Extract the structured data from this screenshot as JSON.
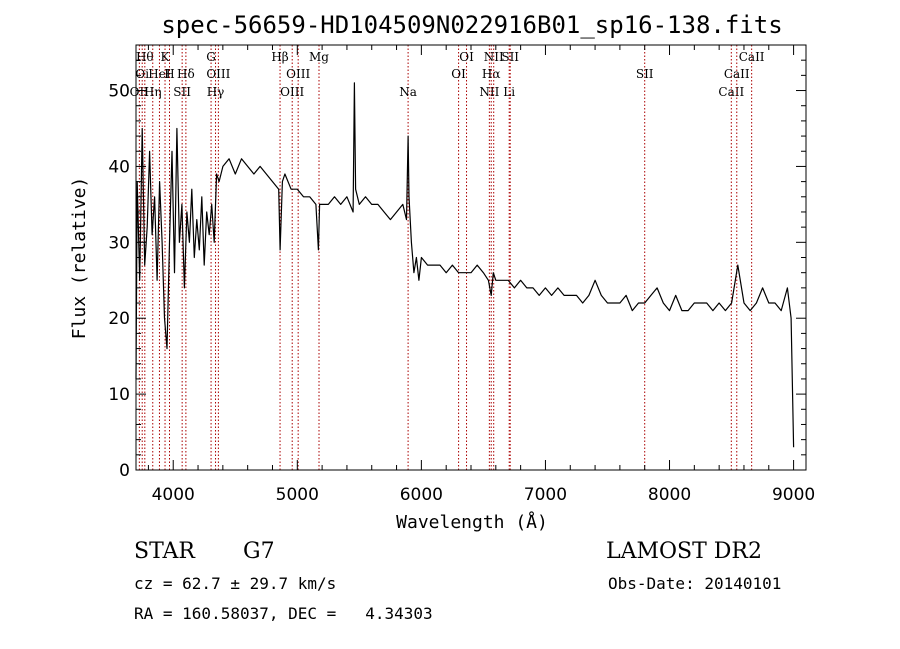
{
  "chart_data": {
    "type": "line",
    "title": "spec-56659-HD104509N022916B01_sp16-138.fits",
    "xlabel": "Wavelength (Å)",
    "ylabel": "Flux (relative)",
    "xlim": [
      3700,
      9100
    ],
    "ylim": [
      0,
      56
    ],
    "xticks": [
      4000,
      5000,
      6000,
      7000,
      8000,
      9000
    ],
    "yticks": [
      0,
      10,
      20,
      30,
      40,
      50
    ],
    "grid": false,
    "line_color": "#000000",
    "marker_color": "#aa0000",
    "series": [
      {
        "x": [
          3700,
          3710,
          3730,
          3750,
          3770,
          3790,
          3810,
          3830,
          3850,
          3870,
          3890,
          3910,
          3930,
          3950,
          3970,
          3990,
          4010,
          4030,
          4050,
          4070,
          4090,
          4110,
          4130,
          4150,
          4170,
          4190,
          4210,
          4230,
          4250,
          4270,
          4290,
          4310,
          4330,
          4350,
          4370,
          4400,
          4450,
          4500,
          4550,
          4600,
          4650,
          4700,
          4750,
          4800,
          4850,
          4861,
          4880,
          4900,
          4950,
          5000,
          5050,
          5100,
          5150,
          5170,
          5180,
          5200,
          5250,
          5300,
          5350,
          5400,
          5450,
          5460,
          5470,
          5500,
          5550,
          5600,
          5650,
          5700,
          5750,
          5800,
          5850,
          5880,
          5893,
          5900,
          5920,
          5940,
          5960,
          5980,
          6000,
          6050,
          6100,
          6150,
          6200,
          6250,
          6300,
          6350,
          6400,
          6450,
          6500,
          6540,
          6563,
          6580,
          6600,
          6650,
          6700,
          6750,
          6800,
          6850,
          6900,
          6950,
          7000,
          7050,
          7100,
          7150,
          7200,
          7250,
          7300,
          7350,
          7400,
          7450,
          7500,
          7550,
          7600,
          7650,
          7700,
          7750,
          7800,
          7850,
          7900,
          7950,
          8000,
          8050,
          8100,
          8150,
          8200,
          8250,
          8300,
          8350,
          8400,
          8450,
          8500,
          8550,
          8600,
          8650,
          8700,
          8750,
          8800,
          8850,
          8900,
          8950,
          8980,
          9000
        ],
        "values": [
          12,
          38,
          25,
          45,
          27,
          32,
          42,
          31,
          36,
          25,
          38,
          30,
          20,
          16,
          30,
          42,
          26,
          45,
          30,
          35,
          24,
          34,
          30,
          37,
          28,
          33,
          29,
          36,
          27,
          34,
          31,
          35,
          30,
          39,
          38,
          40,
          41,
          39,
          41,
          40,
          39,
          40,
          39,
          38,
          37,
          29,
          38,
          39,
          37,
          37,
          36,
          36,
          35,
          29,
          35,
          35,
          35,
          36,
          35,
          36,
          34,
          51,
          37,
          35,
          36,
          35,
          35,
          34,
          33,
          34,
          35,
          33,
          44,
          36,
          30,
          26,
          28,
          25,
          28,
          27,
          27,
          27,
          26,
          27,
          26,
          26,
          26,
          27,
          26,
          25,
          23,
          26,
          25,
          25,
          25,
          24,
          25,
          24,
          24,
          23,
          24,
          23,
          24,
          23,
          23,
          23,
          22,
          23,
          25,
          23,
          22,
          22,
          22,
          23,
          21,
          22,
          22,
          23,
          24,
          22,
          21,
          23,
          21,
          21,
          22,
          22,
          22,
          21,
          22,
          21,
          22,
          27,
          22,
          21,
          22,
          24,
          22,
          22,
          21,
          24,
          20,
          3
        ]
      }
    ],
    "line_markers": [
      {
        "w": 3727,
        "label": "OII",
        "row": 3
      },
      {
        "w": 3750,
        "label": "Oi",
        "row": 2
      },
      {
        "w": 3771,
        "label": "Hθ",
        "row": 1
      },
      {
        "w": 3835,
        "label": "Hη",
        "row": 3
      },
      {
        "w": 3889,
        "label": "HeI",
        "row": 2
      },
      {
        "w": 3934,
        "label": "K",
        "row": 1
      },
      {
        "w": 3970,
        "label": "H",
        "row": 2
      },
      {
        "w": 4072,
        "label": "SII",
        "row": 3
      },
      {
        "w": 4102,
        "label": "Hδ",
        "row": 2
      },
      {
        "w": 4305,
        "label": "G",
        "row": 1
      },
      {
        "w": 4341,
        "label": "Hγ",
        "row": 3
      },
      {
        "w": 4364,
        "label": "OIII",
        "row": 2
      },
      {
        "w": 4861,
        "label": "Hβ",
        "row": 1
      },
      {
        "w": 4959,
        "label": "OIII",
        "row": 3
      },
      {
        "w": 5007,
        "label": "OIII",
        "row": 2
      },
      {
        "w": 5175,
        "label": "Mg",
        "row": 1
      },
      {
        "w": 5893,
        "label": "Na",
        "row": 3
      },
      {
        "w": 6300,
        "label": "OI",
        "row": 2
      },
      {
        "w": 6364,
        "label": "OI",
        "row": 1
      },
      {
        "w": 6548,
        "label": "NII",
        "row": 3
      },
      {
        "w": 6563,
        "label": "Hα",
        "row": 2
      },
      {
        "w": 6583,
        "label": "NII",
        "row": 1
      },
      {
        "w": 6708,
        "label": "Li",
        "row": 3
      },
      {
        "w": 6716,
        "label": "SII",
        "row": 1
      },
      {
        "w": 7800,
        "label": "SII",
        "row": 2
      },
      {
        "w": 8498,
        "label": "CaII",
        "row": 3
      },
      {
        "w": 8542,
        "label": "CaII",
        "row": 2
      },
      {
        "w": 8662,
        "label": "CaII",
        "row": 1
      }
    ]
  },
  "info": {
    "object_type": "STAR",
    "subclass": "G7",
    "survey": "LAMOST DR2",
    "cz": "cz = 62.7 ± 29.7 km/s",
    "obs_date": "Obs-Date: 20140101",
    "coords": "RA = 160.58037, DEC =   4.34303"
  }
}
